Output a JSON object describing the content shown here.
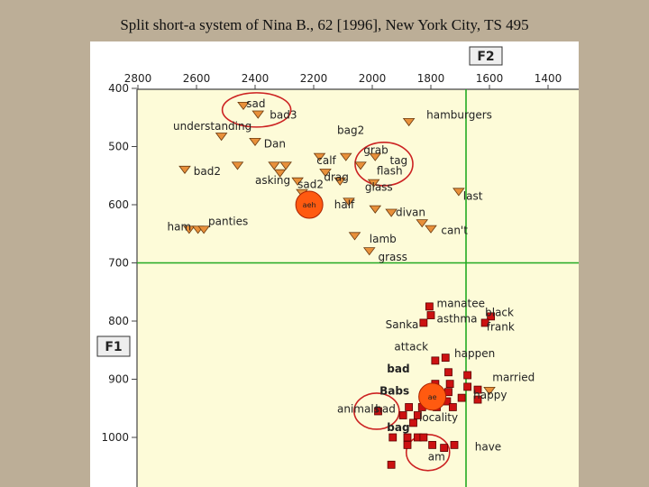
{
  "title": "Split short-a system of Nina B., 62 [1996], New York City, TS 495",
  "chart_data": {
    "type": "scatter",
    "title": "Split short-a system of Nina B., 62 [1996], New York City, TS 495",
    "xlabel": "F2",
    "ylabel": "F1",
    "xlim": [
      2850,
      1300
    ],
    "ylim": [
      400,
      1070
    ],
    "x_reversed": true,
    "y_reversed": true,
    "x_ticks": [
      2800,
      2600,
      2400,
      2200,
      2000,
      1800,
      1600,
      1400
    ],
    "y_ticks": [
      400,
      500,
      600,
      700,
      800,
      900,
      1000
    ],
    "reference_lines": {
      "x": 1680,
      "y": 700
    },
    "colors": {
      "tense": "#e8903a",
      "lax": "#cc1111",
      "mean": "#ff5a10",
      "circle": "#cc2222",
      "grid_line": "#22aa22"
    },
    "series": [
      {
        "marker": "triangle",
        "points": [
          {
            "x": 2440,
            "y": 430
          },
          {
            "x": 2390,
            "y": 445
          },
          {
            "x": 2515,
            "y": 483
          },
          {
            "x": 2400,
            "y": 492
          },
          {
            "x": 2460,
            "y": 533
          },
          {
            "x": 2335,
            "y": 533
          },
          {
            "x": 2295,
            "y": 533
          },
          {
            "x": 2315,
            "y": 546
          },
          {
            "x": 2180,
            "y": 518
          },
          {
            "x": 2090,
            "y": 518
          },
          {
            "x": 2160,
            "y": 545
          },
          {
            "x": 2110,
            "y": 560
          },
          {
            "x": 2040,
            "y": 533
          },
          {
            "x": 1990,
            "y": 518
          },
          {
            "x": 2255,
            "y": 560
          },
          {
            "x": 2240,
            "y": 580
          },
          {
            "x": 1995,
            "y": 563
          },
          {
            "x": 2080,
            "y": 595
          },
          {
            "x": 1990,
            "y": 608
          },
          {
            "x": 1875,
            "y": 458
          },
          {
            "x": 1935,
            "y": 614
          },
          {
            "x": 1830,
            "y": 632
          },
          {
            "x": 1800,
            "y": 642
          },
          {
            "x": 1705,
            "y": 578
          },
          {
            "x": 2640,
            "y": 540
          },
          {
            "x": 2625,
            "y": 643
          },
          {
            "x": 2595,
            "y": 643
          },
          {
            "x": 2575,
            "y": 643
          },
          {
            "x": 2060,
            "y": 654
          },
          {
            "x": 2010,
            "y": 680
          },
          {
            "x": 1600,
            "y": 920
          }
        ]
      },
      {
        "marker": "square",
        "points": [
          {
            "x": 1805,
            "y": 775
          },
          {
            "x": 1800,
            "y": 790
          },
          {
            "x": 1825,
            "y": 803
          },
          {
            "x": 1595,
            "y": 792
          },
          {
            "x": 1615,
            "y": 803
          },
          {
            "x": 1750,
            "y": 863
          },
          {
            "x": 1785,
            "y": 868
          },
          {
            "x": 1740,
            "y": 888
          },
          {
            "x": 1675,
            "y": 893
          },
          {
            "x": 1675,
            "y": 913
          },
          {
            "x": 1735,
            "y": 908
          },
          {
            "x": 1785,
            "y": 908
          },
          {
            "x": 1740,
            "y": 922
          },
          {
            "x": 1640,
            "y": 918
          },
          {
            "x": 1640,
            "y": 935
          },
          {
            "x": 1695,
            "y": 932
          },
          {
            "x": 1745,
            "y": 938
          },
          {
            "x": 1790,
            "y": 938
          },
          {
            "x": 1725,
            "y": 948
          },
          {
            "x": 1780,
            "y": 948
          },
          {
            "x": 1830,
            "y": 948
          },
          {
            "x": 1875,
            "y": 948
          },
          {
            "x": 1980,
            "y": 955
          },
          {
            "x": 1895,
            "y": 962
          },
          {
            "x": 1845,
            "y": 962
          },
          {
            "x": 1860,
            "y": 975
          },
          {
            "x": 1930,
            "y": 1000
          },
          {
            "x": 1880,
            "y": 1000
          },
          {
            "x": 1845,
            "y": 1000
          },
          {
            "x": 1825,
            "y": 1000
          },
          {
            "x": 1880,
            "y": 1013
          },
          {
            "x": 1795,
            "y": 1013
          },
          {
            "x": 1720,
            "y": 1013
          },
          {
            "x": 1935,
            "y": 1047
          },
          {
            "x": 1755,
            "y": 1018
          }
        ]
      }
    ],
    "means": [
      {
        "x": 2215,
        "y": 600,
        "label": "aeh"
      },
      {
        "x": 1795,
        "y": 930,
        "label": "ae"
      }
    ],
    "annotations": [
      {
        "text": "sad",
        "x": 2430,
        "y": 426,
        "bold": false
      },
      {
        "text": "bad3",
        "x": 2350,
        "y": 446,
        "bold": false
      },
      {
        "text": "understanding",
        "x": 2680,
        "y": 465,
        "bold": false
      },
      {
        "text": "bag2",
        "x": 2120,
        "y": 472,
        "bold": false
      },
      {
        "text": "hamburgers",
        "x": 1815,
        "y": 446,
        "bold": false
      },
      {
        "text": "Dan",
        "x": 2370,
        "y": 495,
        "bold": false
      },
      {
        "text": "grab",
        "x": 2030,
        "y": 506,
        "bold": false
      },
      {
        "text": "calf",
        "x": 2190,
        "y": 524,
        "bold": false
      },
      {
        "text": "tag",
        "x": 1940,
        "y": 524,
        "bold": false
      },
      {
        "text": "bad2",
        "x": 2610,
        "y": 543,
        "bold": false
      },
      {
        "text": "flash",
        "x": 1985,
        "y": 542,
        "bold": false
      },
      {
        "text": "asking",
        "x": 2400,
        "y": 558,
        "bold": false
      },
      {
        "text": "drag",
        "x": 2165,
        "y": 553,
        "bold": false
      },
      {
        "text": "sad2",
        "x": 2255,
        "y": 565,
        "bold": false
      },
      {
        "text": "glass",
        "x": 2025,
        "y": 570,
        "bold": false
      },
      {
        "text": "last",
        "x": 1690,
        "y": 585,
        "bold": false
      },
      {
        "text": "half",
        "x": 2130,
        "y": 600,
        "bold": false
      },
      {
        "text": "divan",
        "x": 1920,
        "y": 613,
        "bold": false
      },
      {
        "text": "panties",
        "x": 2560,
        "y": 629,
        "bold": false
      },
      {
        "text": "ham",
        "x": 2700,
        "y": 638,
        "bold": false
      },
      {
        "text": "can't",
        "x": 1765,
        "y": 644,
        "bold": false
      },
      {
        "text": "lamb",
        "x": 2010,
        "y": 659,
        "bold": false
      },
      {
        "text": "grass",
        "x": 1980,
        "y": 690,
        "bold": false
      },
      {
        "text": "manatee",
        "x": 1780,
        "y": 770,
        "bold": false
      },
      {
        "text": "black",
        "x": 1615,
        "y": 785,
        "bold": false
      },
      {
        "text": "asthma",
        "x": 1780,
        "y": 796,
        "bold": false
      },
      {
        "text": "Sanka",
        "x": 1955,
        "y": 806,
        "bold": false
      },
      {
        "text": "frank",
        "x": 1610,
        "y": 810,
        "bold": false
      },
      {
        "text": "attack",
        "x": 1925,
        "y": 844,
        "bold": false
      },
      {
        "text": "happen",
        "x": 1720,
        "y": 856,
        "bold": false
      },
      {
        "text": "bad",
        "x": 1950,
        "y": 882,
        "bold": true
      },
      {
        "text": "married",
        "x": 1590,
        "y": 897,
        "bold": false
      },
      {
        "text": "Babs",
        "x": 1975,
        "y": 920,
        "bold": true
      },
      {
        "text": "happy",
        "x": 1655,
        "y": 927,
        "bold": false
      },
      {
        "text": "animals",
        "x": 2120,
        "y": 951,
        "bold": false
      },
      {
        "text": "had",
        "x": 1990,
        "y": 951,
        "bold": false
      },
      {
        "text": "locality",
        "x": 1840,
        "y": 966,
        "bold": false
      },
      {
        "text": "bag",
        "x": 1950,
        "y": 983,
        "bold": true
      },
      {
        "text": "have",
        "x": 1650,
        "y": 1016,
        "bold": false
      },
      {
        "text": "am",
        "x": 1810,
        "y": 1033,
        "bold": false
      }
    ],
    "circles": [
      {
        "x": 2395,
        "y": 437,
        "rx": 38,
        "ry": 19
      },
      {
        "x": 1960,
        "y": 530,
        "rx": 32,
        "ry": 24
      },
      {
        "x": 1985,
        "y": 955,
        "rx": 25,
        "ry": 20
      },
      {
        "x": 1810,
        "y": 1026,
        "rx": 24,
        "ry": 20
      }
    ]
  }
}
